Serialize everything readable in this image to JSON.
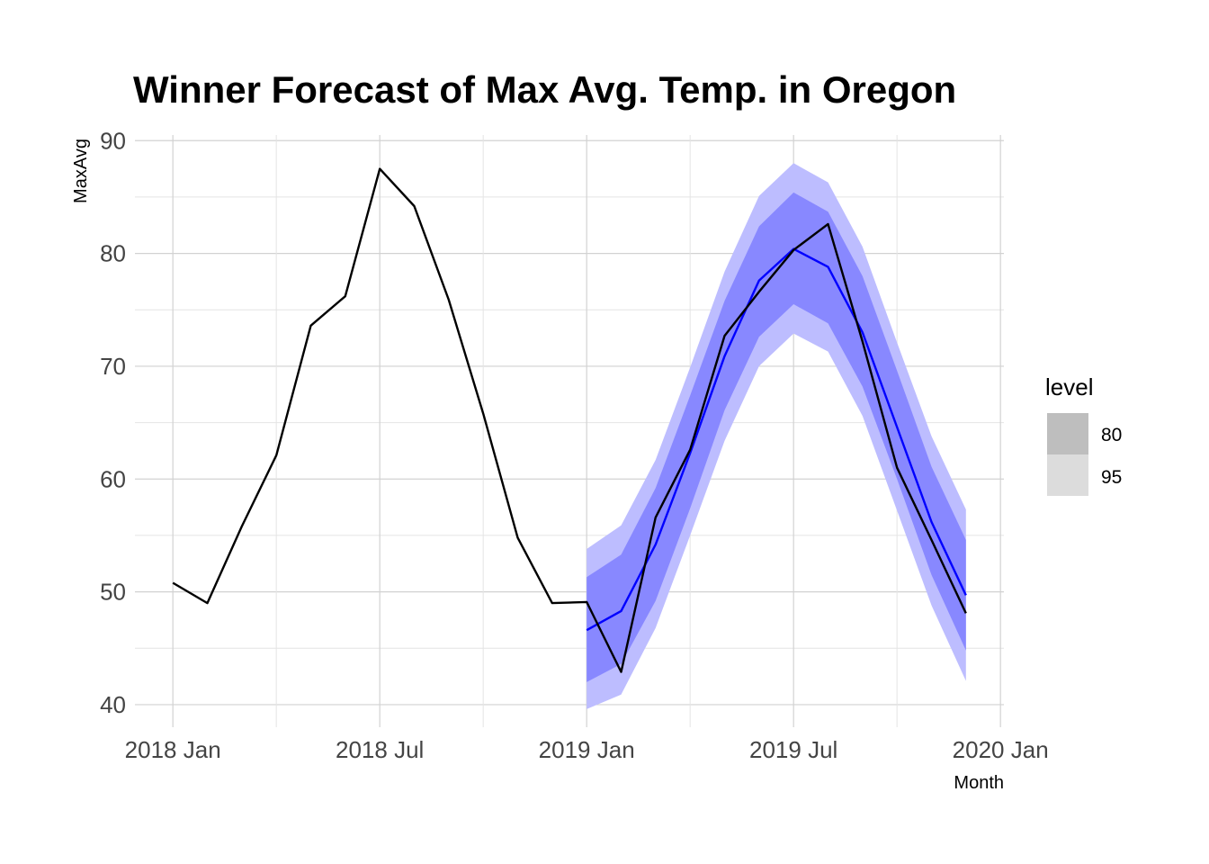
{
  "chart_data": {
    "type": "line",
    "title": "Winner Forecast of Max Avg. Temp. in Oregon",
    "xlabel": "Month",
    "ylabel": "MaxAvg",
    "x_tick_labels": [
      "2018 Jan",
      "2018 Jul",
      "2019 Jan",
      "2019 Jul",
      "2020 Jan"
    ],
    "x_tick_values": [
      "2018-01",
      "2018-07",
      "2019-01",
      "2019-07",
      "2020-01"
    ],
    "y_ticks": [
      40,
      50,
      60,
      70,
      80,
      90
    ],
    "xlim": [
      "2017-12",
      "2020-01"
    ],
    "ylim": [
      38,
      90.5
    ],
    "grid": true,
    "legend": {
      "title": "level",
      "placement": "right",
      "entries": [
        {
          "label": "80",
          "color": "#bebebe"
        },
        {
          "label": "95",
          "color": "#dcdcdc"
        }
      ]
    },
    "series": [
      {
        "style": "actual",
        "color": "#000000",
        "x": [
          "2018-01",
          "2018-02",
          "2018-03",
          "2018-04",
          "2018-05",
          "2018-06",
          "2018-07",
          "2018-08",
          "2018-09",
          "2018-10",
          "2018-11",
          "2018-12",
          "2019-01",
          "2019-02",
          "2019-03",
          "2019-04",
          "2019-05",
          "2019-06",
          "2019-07",
          "2019-08",
          "2019-09",
          "2019-10",
          "2019-11",
          "2019-12"
        ],
        "values": [
          50.8,
          49.0,
          55.8,
          62.1,
          73.6,
          76.2,
          87.5,
          84.2,
          75.9,
          65.8,
          54.8,
          49.0,
          49.1,
          42.9,
          56.6,
          62.6,
          72.7,
          76.6,
          80.3,
          82.6,
          72.2,
          61.0,
          54.6,
          48.1
        ]
      },
      {
        "style": "forecast",
        "color": "#0000ff",
        "x": [
          "2019-01",
          "2019-02",
          "2019-03",
          "2019-04",
          "2019-05",
          "2019-06",
          "2019-07",
          "2019-08",
          "2019-09",
          "2019-10",
          "2019-11",
          "2019-12"
        ],
        "values": [
          46.6,
          48.3,
          54.2,
          62.3,
          70.9,
          77.6,
          80.4,
          78.8,
          73.0,
          64.6,
          56.2,
          49.7
        ],
        "interval_80": {
          "color": "#8888ff",
          "lower": [
            42.0,
            43.6,
            49.2,
            57.4,
            66.1,
            72.6,
            75.5,
            73.8,
            68.2,
            60.0,
            51.5,
            44.8
          ],
          "upper": [
            51.3,
            53.3,
            59.2,
            67.4,
            75.8,
            82.4,
            85.4,
            83.7,
            78.0,
            69.6,
            61.1,
            54.6
          ]
        },
        "interval_95": {
          "color": "#bdbdff",
          "lower": [
            39.6,
            40.9,
            46.8,
            55.0,
            63.4,
            70.0,
            72.9,
            71.3,
            65.6,
            57.2,
            48.8,
            42.1
          ],
          "upper": [
            53.8,
            55.9,
            61.7,
            69.9,
            78.4,
            85.1,
            88.0,
            86.3,
            80.6,
            72.1,
            63.8,
            57.3
          ]
        }
      }
    ]
  }
}
